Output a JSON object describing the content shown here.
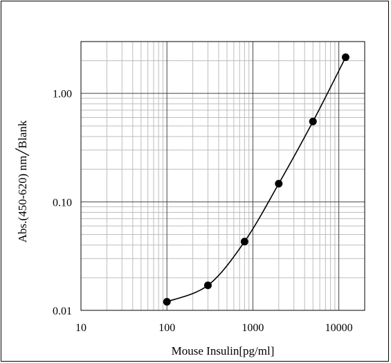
{
  "chart_data": {
    "type": "scatter",
    "title": "",
    "xlabel": "Mouse Insulin[pg/ml]",
    "ylabel": "Abs.(450-620)  nm╱Blank",
    "x_scale": "log",
    "y_scale": "log",
    "xlim": [
      10,
      20000
    ],
    "ylim": [
      0.01,
      3
    ],
    "x_ticks": [
      10,
      100,
      1000,
      10000
    ],
    "x_tick_labels": [
      "10",
      "100",
      "1000",
      "10000"
    ],
    "y_ticks": [
      0.01,
      0.1,
      1.0
    ],
    "y_tick_labels": [
      "0.01",
      "0.10",
      "1.00"
    ],
    "grid": true,
    "series": [
      {
        "points": [
          {
            "x": 100,
            "y": 0.012
          },
          {
            "x": 300,
            "y": 0.017
          },
          {
            "x": 800,
            "y": 0.043
          },
          {
            "x": 2000,
            "y": 0.147
          },
          {
            "x": 5000,
            "y": 0.55
          },
          {
            "x": 12000,
            "y": 2.15
          }
        ],
        "marker": "filled-circle",
        "line": "smooth",
        "color": "#000000"
      }
    ]
  }
}
